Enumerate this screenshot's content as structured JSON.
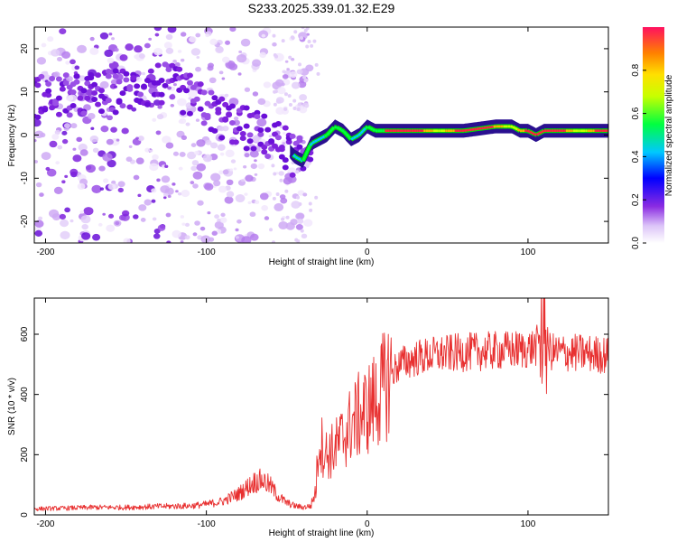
{
  "figure": {
    "title": "S233.2025.339.01.32.E29"
  },
  "chart_data": [
    {
      "type": "heatmap",
      "name": "spectrogram",
      "xlabel": "Height of straight line (km)",
      "ylabel": "Frequency (Hz)",
      "xlim": [
        -207,
        150
      ],
      "ylim": [
        -25,
        25
      ],
      "x_ticks": [
        -200,
        -100,
        0,
        100
      ],
      "y_ticks": [
        -20,
        -10,
        0,
        10,
        20
      ],
      "ridge": {
        "description_values_only": "dominant frequency (Hz) vs height (km)",
        "x": [
          -207,
          -180,
          -160,
          -140,
          -130,
          -120,
          -110,
          -100,
          -90,
          -80,
          -70,
          -60,
          -50,
          -45,
          -40,
          -35,
          -30,
          -25,
          -20,
          -15,
          -10,
          -5,
          0,
          5,
          10,
          20,
          40,
          60,
          80,
          85,
          90,
          95,
          100,
          105,
          110,
          120,
          140,
          150
        ],
        "y": [
          9,
          9,
          10,
          11,
          12,
          11,
          9,
          6,
          4,
          2,
          1,
          -1,
          -3,
          -5,
          -6,
          -2,
          -1,
          0,
          2,
          1,
          -1,
          0,
          2,
          1,
          1,
          1,
          1,
          1,
          2,
          2,
          2,
          1,
          1,
          0,
          1,
          1,
          1,
          1
        ]
      },
      "colorbar": {
        "label": "Normalized spectral amplitude",
        "range": [
          0,
          1
        ],
        "ticks": [
          "0.0",
          "0.2",
          "0.4",
          "0.6",
          "0.8"
        ]
      }
    },
    {
      "type": "line",
      "name": "snr",
      "xlabel": "Height of straight line (km)",
      "ylabel": "SNR (10 * v/v)",
      "xlim": [
        -207,
        150
      ],
      "ylim": [
        0,
        720
      ],
      "x_ticks": [
        -200,
        -100,
        0,
        100
      ],
      "y_ticks": [
        0,
        200,
        400,
        600
      ],
      "series": [
        {
          "name": "SNR",
          "color": "#e83030",
          "x": [
            -207,
            -190,
            -170,
            -150,
            -130,
            -110,
            -100,
            -90,
            -80,
            -75,
            -70,
            -65,
            -60,
            -55,
            -50,
            -45,
            -40,
            -35,
            -32,
            -30,
            -25,
            -20,
            -15,
            -10,
            -5,
            0,
            5,
            10,
            15,
            20,
            25,
            30,
            40,
            60,
            80,
            100,
            105,
            108,
            110,
            112,
            115,
            120,
            140,
            150
          ],
          "y": [
            20,
            22,
            25,
            25,
            28,
            30,
            35,
            45,
            70,
            90,
            110,
            115,
            95,
            60,
            40,
            30,
            25,
            30,
            80,
            250,
            200,
            220,
            260,
            300,
            330,
            350,
            380,
            420,
            470,
            500,
            510,
            520,
            530,
            540,
            545,
            550,
            560,
            580,
            650,
            560,
            540,
            540,
            535,
            530
          ]
        }
      ]
    }
  ]
}
